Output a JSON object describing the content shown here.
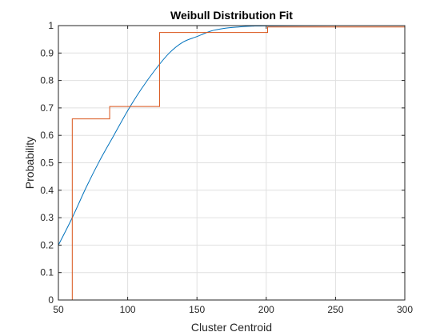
{
  "chart_data": {
    "type": "line",
    "title": "Weibull Distribution Fit",
    "xlabel": "Cluster Centroid",
    "ylabel": "Probability",
    "xlim": [
      50,
      300
    ],
    "ylim": [
      0,
      1
    ],
    "xticks": [
      "50",
      "100",
      "150",
      "200",
      "250",
      "300"
    ],
    "yticks": [
      "0",
      "0.1",
      "0.2",
      "0.3",
      "0.4",
      "0.5",
      "0.6",
      "0.7",
      "0.8",
      "0.9",
      "1"
    ],
    "grid": true,
    "legend": "none",
    "series": [
      {
        "kind": "smooth",
        "color": "#0072BD",
        "points": [
          [
            50,
            0.2
          ],
          [
            60,
            0.3
          ],
          [
            70,
            0.41
          ],
          [
            80,
            0.51
          ],
          [
            90,
            0.6
          ],
          [
            100,
            0.69
          ],
          [
            110,
            0.77
          ],
          [
            120,
            0.84
          ],
          [
            130,
            0.9
          ],
          [
            140,
            0.94
          ],
          [
            150,
            0.96
          ],
          [
            160,
            0.98
          ],
          [
            170,
            0.99
          ],
          [
            180,
            0.995
          ],
          [
            190,
            0.998
          ],
          [
            200,
            0.999
          ],
          [
            250,
            1.0
          ],
          [
            300,
            1.0
          ]
        ]
      },
      {
        "kind": "step",
        "color": "#D95319",
        "points": [
          [
            60,
            0
          ],
          [
            60,
            0.66
          ],
          [
            87,
            0.66
          ],
          [
            87,
            0.705
          ],
          [
            123,
            0.705
          ],
          [
            123,
            0.975
          ],
          [
            201,
            0.975
          ],
          [
            201,
            0.995
          ],
          [
            300,
            0.995
          ]
        ]
      }
    ]
  }
}
